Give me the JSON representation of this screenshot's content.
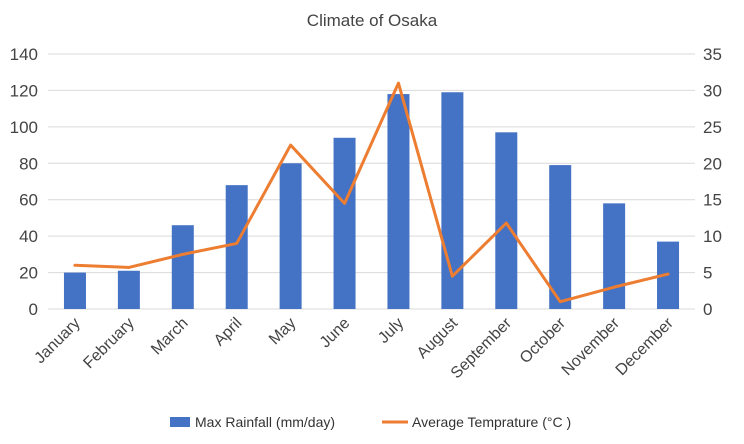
{
  "chart_data": {
    "type": "bar",
    "title": "Climate of Osaka",
    "categories": [
      "January",
      "February",
      "March",
      "April",
      "May",
      "June",
      "July",
      "August",
      "September",
      "October",
      "November",
      "December"
    ],
    "series": [
      {
        "name": "Max Rainfall (mm/day)",
        "type": "bar",
        "axis": "left",
        "color": "#4472c4",
        "values": [
          20,
          21,
          46,
          68,
          80,
          94,
          118,
          119,
          97,
          79,
          58,
          37
        ]
      },
      {
        "name": "Average Temprature (°C )",
        "type": "line",
        "axis": "right",
        "color": "#ed7d31",
        "values": [
          6,
          5.7,
          7.5,
          9,
          22.5,
          14.5,
          31,
          4.5,
          11.8,
          1,
          3,
          4.8
        ]
      }
    ],
    "y_left": {
      "min": 0,
      "max": 140,
      "ticks": [
        0,
        20,
        40,
        60,
        80,
        100,
        120,
        140
      ]
    },
    "y_right": {
      "min": 0,
      "max": 35,
      "ticks": [
        0,
        5,
        10,
        15,
        20,
        25,
        30,
        35
      ]
    },
    "grid": true,
    "legend_position": "bottom"
  }
}
